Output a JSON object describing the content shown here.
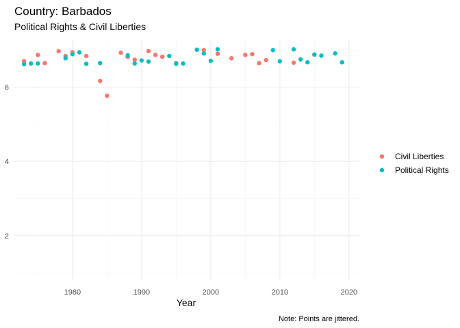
{
  "chart_data": {
    "type": "scatter",
    "title": "Country: Barbados",
    "subtitle": "Political Rights & Civil Liberties",
    "xlabel": "Year",
    "ylabel": "",
    "caption": "Note: Points are jittered.",
    "xlim": [
      1971.5,
      2021.5
    ],
    "ylim": [
      0.8,
      7.3
    ],
    "x_ticks": [
      1980,
      1990,
      2000,
      2010,
      2020
    ],
    "y_ticks": [
      2,
      4,
      6
    ],
    "grid": true,
    "legend_position": "right",
    "series": [
      {
        "name": "Civil Liberties",
        "color": "#F8766D",
        "points": [
          [
            1973,
            6.7
          ],
          [
            1975,
            6.87
          ],
          [
            1976,
            6.65
          ],
          [
            1978,
            6.97
          ],
          [
            1979,
            6.84
          ],
          [
            1980,
            6.94
          ],
          [
            1982,
            6.84
          ],
          [
            1984,
            6.17
          ],
          [
            1985,
            5.77
          ],
          [
            1987,
            6.93
          ],
          [
            1988,
            6.82
          ],
          [
            1989,
            6.74
          ],
          [
            1991,
            6.97
          ],
          [
            1992,
            6.87
          ],
          [
            1993,
            6.82
          ],
          [
            1995,
            6.65
          ],
          [
            1999,
            7.0
          ],
          [
            2001,
            6.9
          ],
          [
            2003,
            6.78
          ],
          [
            2005,
            6.87
          ],
          [
            2006,
            6.89
          ],
          [
            2007,
            6.65
          ],
          [
            2008,
            6.73
          ],
          [
            2012,
            6.66
          ],
          [
            2015,
            6.88
          ]
        ]
      },
      {
        "name": "Political Rights",
        "color": "#00BFC4",
        "points": [
          [
            1973,
            6.62
          ],
          [
            1974,
            6.64
          ],
          [
            1975,
            6.64
          ],
          [
            1979,
            6.78
          ],
          [
            1980,
            6.89
          ],
          [
            1981,
            6.94
          ],
          [
            1982,
            6.63
          ],
          [
            1984,
            6.65
          ],
          [
            1988,
            6.86
          ],
          [
            1989,
            6.64
          ],
          [
            1990,
            6.72
          ],
          [
            1991,
            6.69
          ],
          [
            1994,
            6.84
          ],
          [
            1995,
            6.63
          ],
          [
            1996,
            6.64
          ],
          [
            1998,
            7.01
          ],
          [
            1999,
            6.91
          ],
          [
            2000,
            6.71
          ],
          [
            2001,
            7.02
          ],
          [
            2009,
            7.0
          ],
          [
            2010,
            6.7
          ],
          [
            2012,
            7.02
          ],
          [
            2013,
            6.75
          ],
          [
            2014,
            6.67
          ],
          [
            2015,
            6.88
          ],
          [
            2016,
            6.85
          ],
          [
            2018,
            6.91
          ],
          [
            2019,
            6.67
          ]
        ]
      }
    ]
  }
}
